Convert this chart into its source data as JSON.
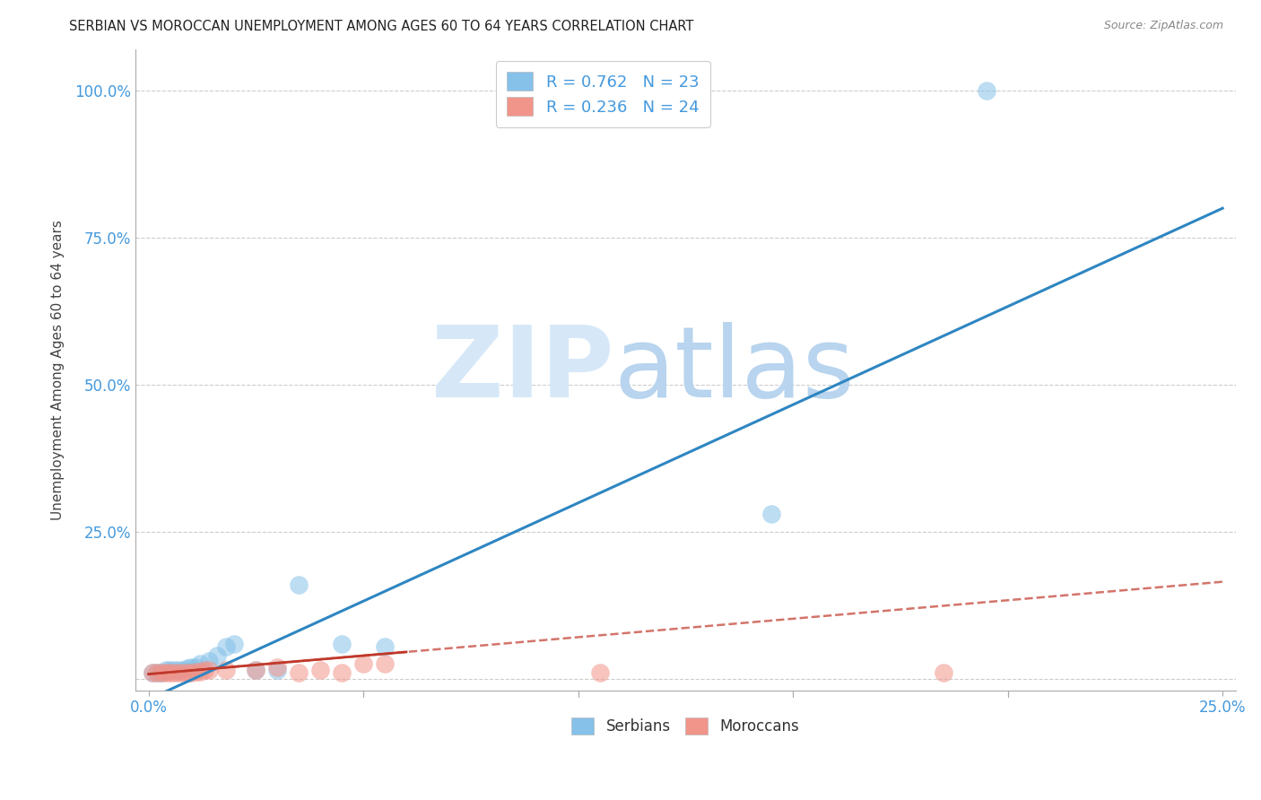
{
  "title": "SERBIAN VS MOROCCAN UNEMPLOYMENT AMONG AGES 60 TO 64 YEARS CORRELATION CHART",
  "source": "Source: ZipAtlas.com",
  "ylabel": "Unemployment Among Ages 60 to 64 years",
  "xlim": [
    -0.3,
    25.3
  ],
  "ylim": [
    -2.0,
    107.0
  ],
  "xticks": [
    0.0,
    5.0,
    10.0,
    15.0,
    20.0,
    25.0
  ],
  "yticks": [
    0.0,
    25.0,
    50.0,
    75.0,
    100.0
  ],
  "serbian_R": 0.762,
  "serbian_N": 23,
  "moroccan_R": 0.236,
  "moroccan_N": 24,
  "serbian_color": "#85C1E9",
  "moroccan_color": "#F1948A",
  "serbian_line_color": "#2E86C1",
  "moroccan_line_color": "#C0392B",
  "background_color": "#FFFFFF",
  "grid_color": "#CCCCCC",
  "title_color": "#222222",
  "axis_label_color": "#444444",
  "tick_color": "#4499DD",
  "serbian_x": [
    0.1,
    0.2,
    0.3,
    0.4,
    0.5,
    0.6,
    0.7,
    0.8,
    0.9,
    1.0,
    1.1,
    1.2,
    1.4,
    1.6,
    1.8,
    2.0,
    2.5,
    3.0,
    3.5,
    4.5,
    5.5,
    14.5,
    19.5
  ],
  "serbian_y": [
    1.0,
    1.0,
    1.0,
    1.5,
    1.5,
    1.5,
    1.5,
    1.5,
    1.8,
    2.0,
    2.0,
    2.5,
    3.0,
    4.0,
    5.5,
    6.0,
    1.5,
    1.5,
    16.0,
    6.0,
    5.5,
    28.0,
    100.0
  ],
  "moroccan_x": [
    0.1,
    0.2,
    0.3,
    0.4,
    0.5,
    0.6,
    0.7,
    0.8,
    0.9,
    1.0,
    1.1,
    1.2,
    1.3,
    1.4,
    1.8,
    2.5,
    3.0,
    3.5,
    4.0,
    4.5,
    5.0,
    5.5,
    10.5,
    18.5
  ],
  "moroccan_y": [
    1.0,
    1.0,
    1.0,
    1.0,
    1.0,
    1.0,
    1.0,
    1.0,
    1.0,
    1.0,
    1.2,
    1.2,
    1.5,
    1.5,
    1.5,
    1.5,
    2.0,
    1.0,
    1.5,
    1.0,
    2.5,
    2.5,
    1.0,
    1.0
  ],
  "ser_line_x0": 0.0,
  "ser_line_x1": 25.0,
  "ser_line_y0": -3.5,
  "ser_line_y1": 80.0,
  "mor_line_x0": 0.0,
  "mor_line_x1": 25.0,
  "mor_line_y0": 0.8,
  "mor_line_y1": 16.5,
  "mor_solid_x0": 0.0,
  "mor_solid_x1": 6.0,
  "mor_solid_y0": 0.8,
  "mor_solid_y1": 4.8
}
